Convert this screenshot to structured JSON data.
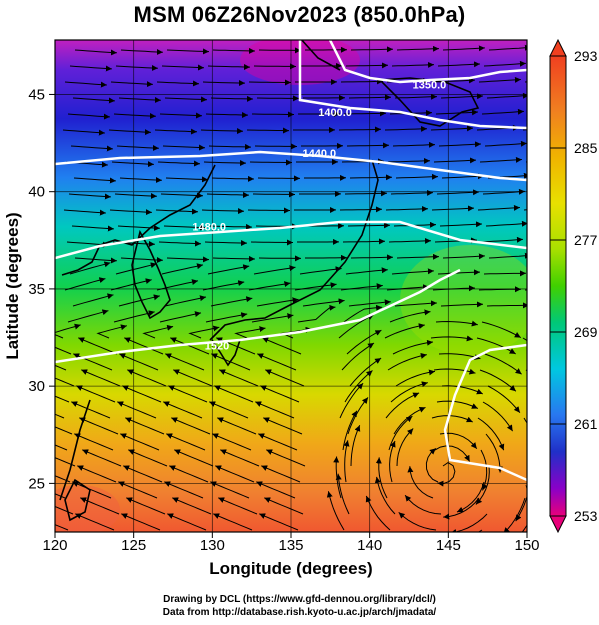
{
  "title": "MSM 06Z26Nov2023 (850.0hPa)",
  "map": {
    "xlabel": "Longitude (degrees)",
    "ylabel": "Latitude (degrees)",
    "xlim": [
      120,
      150
    ],
    "ylim": [
      22.5,
      47.8
    ],
    "xticks": [
      "120",
      "125",
      "130",
      "135",
      "140",
      "145",
      "150"
    ],
    "yticks": [
      "25",
      "30",
      "35",
      "40",
      "45"
    ],
    "contours": [
      {
        "label": "1350.0",
        "lon": 143.8,
        "lat": 45.5
      },
      {
        "label": "1400.0",
        "lon": 137.8,
        "lat": 44.1
      },
      {
        "label": "1440.0",
        "lon": 136.8,
        "lat": 42.0
      },
      {
        "label": "1480.0",
        "lon": 129.8,
        "lat": 38.2
      },
      {
        "label": "1520",
        "lon": 130.3,
        "lat": 32.1
      }
    ]
  },
  "colorbar": {
    "min": 253,
    "max": 293,
    "labels": [
      "293",
      "285",
      "277",
      "269",
      "261",
      "253"
    ],
    "colors": [
      "#e8007a",
      "#8a00c8",
      "#2030c8",
      "#2878f0",
      "#00c8e0",
      "#00c878",
      "#40d000",
      "#a8e000",
      "#e8e000",
      "#f0b400",
      "#f08020",
      "#f04020"
    ]
  },
  "credits": {
    "line1": "Drawing by DCL (https://www.gfd-dennou.org/library/dcl/)",
    "line2": "Data from http://database.rish.kyoto-u.ac.jp/arch/jmadata/"
  }
}
